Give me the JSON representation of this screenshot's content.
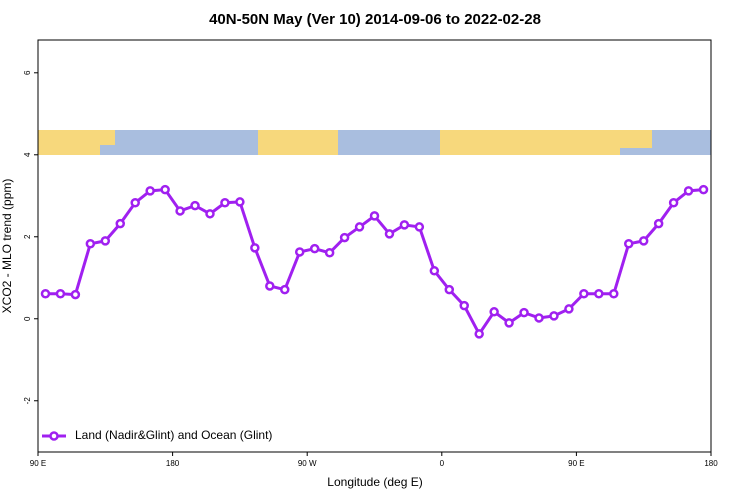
{
  "chart_data": {
    "type": "line",
    "title": "40N-50N May (Ver 10)   2014-09-06 to 2022-02-28",
    "xlabel": "Longitude (deg E)",
    "ylabel": "XCO2 - MLO trend (ppm)",
    "x": [
      95,
      105,
      115,
      125,
      135,
      145,
      155,
      165,
      175,
      185,
      195,
      205,
      215,
      225,
      235,
      245,
      255,
      265,
      275,
      285,
      295,
      305,
      315,
      325,
      335,
      345,
      355,
      365,
      375,
      385,
      395,
      405,
      415,
      425,
      435,
      445,
      455,
      465,
      475,
      485,
      495,
      505,
      515,
      525,
      535
    ],
    "series": [
      {
        "name": "Land (Nadir&Glint) and Ocean (Glint)",
        "color": "#a020f0",
        "values": [
          0.61,
          0.61,
          0.59,
          1.83,
          1.9,
          2.32,
          2.83,
          3.12,
          3.15,
          2.63,
          2.76,
          2.56,
          2.83,
          2.85,
          1.73,
          0.8,
          0.71,
          1.63,
          1.71,
          1.61,
          1.98,
          2.24,
          2.51,
          2.07,
          2.29,
          2.24,
          1.17,
          0.71,
          0.32,
          -0.37,
          0.17,
          -0.1,
          0.15,
          0.02,
          0.07,
          0.24,
          0.61,
          0.61,
          0.61,
          1.83,
          1.9,
          2.32,
          2.83,
          3.12,
          3.15
        ]
      }
    ],
    "xlim": [
      90,
      540
    ],
    "xticks": [
      {
        "value": 90,
        "label": "90 E"
      },
      180,
      {
        "value": 270,
        "label": "90 W"
      },
      {
        "value": 360,
        "label": "0"
      },
      {
        "value": 450,
        "label": "90 E"
      },
      {
        "value": 540,
        "label": "180"
      }
    ],
    "ylim": [
      -3.25,
      6.8
    ],
    "yticks": [
      -2,
      0,
      2,
      4,
      6
    ],
    "legend": "bottom-left"
  }
}
